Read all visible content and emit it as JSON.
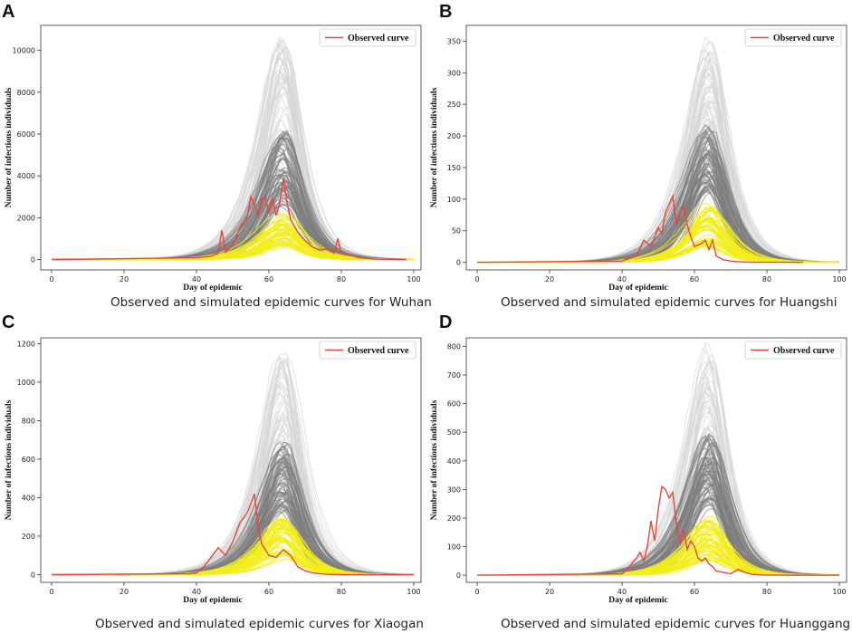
{
  "figure": {
    "panels": [
      {
        "letter": "A",
        "caption": "Observed and simulated epidemic curves for Wuhan"
      },
      {
        "letter": "B",
        "caption": "Observed and simulated epidemic curves for Huangshi"
      },
      {
        "letter": "C",
        "caption": "Observed and simulated epidemic curves for Xiaogan"
      },
      {
        "letter": "D",
        "caption": "Observed and simulated epidemic curves for Huanggang"
      }
    ]
  },
  "colors": {
    "observed": "#e8453c",
    "sim_light": "#d6d6d6",
    "sim_dark": "#7d7d7d",
    "sim_yellow": "#f2ee1a",
    "axes": "#333333"
  },
  "chart_data": [
    {
      "type": "line",
      "title": "Observed and simulated epidemic curves for Wuhan",
      "xlabel": "Day of epidemic",
      "ylabel": "Number of infections individuals",
      "xlim": [
        -3,
        102
      ],
      "ylim": [
        -500,
        11200
      ],
      "xticks": [
        0,
        20,
        40,
        60,
        80,
        100
      ],
      "yticks": [
        0,
        2000,
        4000,
        6000,
        8000,
        10000
      ],
      "legend": {
        "label": "Observed curve",
        "position": "top-right"
      },
      "simulated_envelopes": {
        "light_peak": 10700,
        "dark_peak": 6100,
        "yellow_peak": 2300,
        "peak_day": 64
      },
      "series": [
        {
          "name": "Observed curve",
          "x": [
            0,
            40,
            44,
            46,
            47,
            48,
            50,
            52,
            54,
            55,
            56,
            57,
            58,
            59,
            60,
            61,
            62,
            63,
            64,
            65,
            66,
            68,
            70,
            72,
            74,
            76,
            78,
            79,
            80,
            82,
            84,
            86,
            90,
            98
          ],
          "y": [
            0,
            80,
            150,
            300,
            1400,
            350,
            700,
            1500,
            2000,
            3000,
            2600,
            2100,
            2900,
            3000,
            2200,
            2900,
            2100,
            2700,
            3900,
            2700,
            1900,
            1300,
            900,
            600,
            450,
            500,
            300,
            1000,
            300,
            250,
            120,
            60,
            10,
            0
          ]
        }
      ]
    },
    {
      "type": "line",
      "title": "Observed and simulated epidemic curves for Huangshi",
      "xlabel": "Day of epidemic",
      "ylabel": "Number of infections individuals",
      "xlim": [
        -3,
        102
      ],
      "ylim": [
        -12,
        375
      ],
      "xticks": [
        0,
        20,
        40,
        60,
        80,
        100
      ],
      "yticks": [
        0,
        50,
        100,
        150,
        200,
        250,
        300,
        350
      ],
      "legend": {
        "label": "Observed curve",
        "position": "top-right"
      },
      "simulated_envelopes": {
        "light_peak": 365,
        "dark_peak": 215,
        "yellow_peak": 95,
        "peak_day": 64
      },
      "series": [
        {
          "name": "Observed curve",
          "x": [
            0,
            40,
            44,
            46,
            48,
            50,
            51,
            52,
            54,
            55,
            56,
            57,
            58,
            59,
            60,
            62,
            63,
            64,
            65,
            66,
            68,
            70,
            72,
            76,
            80,
            90
          ],
          "y": [
            0,
            2,
            10,
            35,
            25,
            55,
            45,
            80,
            105,
            60,
            75,
            90,
            60,
            40,
            25,
            30,
            35,
            20,
            35,
            10,
            4,
            2,
            1,
            0,
            0,
            0
          ]
        }
      ]
    },
    {
      "type": "line",
      "title": "Observed and simulated epidemic curves for Xiaogan",
      "xlabel": "Day of epidemic",
      "ylabel": "Number of infections individuals",
      "xlim": [
        -3,
        102
      ],
      "ylim": [
        -40,
        1230
      ],
      "xticks": [
        0,
        20,
        40,
        60,
        80,
        100
      ],
      "yticks": [
        0,
        200,
        400,
        600,
        800,
        1000,
        1200
      ],
      "legend": {
        "label": "Observed curve",
        "position": "top-right"
      },
      "simulated_envelopes": {
        "light_peak": 1190,
        "dark_peak": 690,
        "yellow_peak": 295,
        "peak_day": 64
      },
      "series": [
        {
          "name": "Observed curve",
          "x": [
            0,
            38,
            40,
            42,
            44,
            46,
            48,
            50,
            52,
            54,
            56,
            57,
            58,
            60,
            62,
            64,
            66,
            68,
            70,
            72,
            74,
            76,
            80,
            100
          ],
          "y": [
            0,
            5,
            10,
            40,
            90,
            140,
            100,
            170,
            270,
            320,
            420,
            250,
            160,
            100,
            90,
            130,
            100,
            40,
            20,
            10,
            5,
            2,
            0,
            0
          ]
        }
      ]
    },
    {
      "type": "line",
      "title": "Observed and simulated epidemic curves for Huanggang",
      "xlabel": "Day of epidemic",
      "ylabel": "Number of infections individuals",
      "xlim": [
        -3,
        102
      ],
      "ylim": [
        -25,
        830
      ],
      "xticks": [
        0,
        20,
        40,
        60,
        80,
        100
      ],
      "yticks": [
        0,
        100,
        200,
        300,
        400,
        500,
        600,
        700,
        800
      ],
      "legend": {
        "label": "Observed curve",
        "position": "top-right"
      },
      "simulated_envelopes": {
        "light_peak": 810,
        "dark_peak": 490,
        "yellow_peak": 210,
        "peak_day": 64
      },
      "series": [
        {
          "name": "Observed curve",
          "x": [
            0,
            40,
            42,
            44,
            45,
            46,
            47,
            48,
            49,
            50,
            51,
            52,
            53,
            54,
            55,
            56,
            57,
            58,
            59,
            60,
            61,
            62,
            63,
            64,
            65,
            66,
            68,
            70,
            72,
            74,
            76,
            80,
            100
          ],
          "y": [
            0,
            5,
            30,
            60,
            80,
            50,
            100,
            190,
            120,
            230,
            310,
            300,
            270,
            290,
            180,
            110,
            160,
            90,
            120,
            100,
            60,
            50,
            60,
            40,
            30,
            15,
            10,
            5,
            20,
            10,
            3,
            0,
            0
          ]
        }
      ]
    }
  ]
}
